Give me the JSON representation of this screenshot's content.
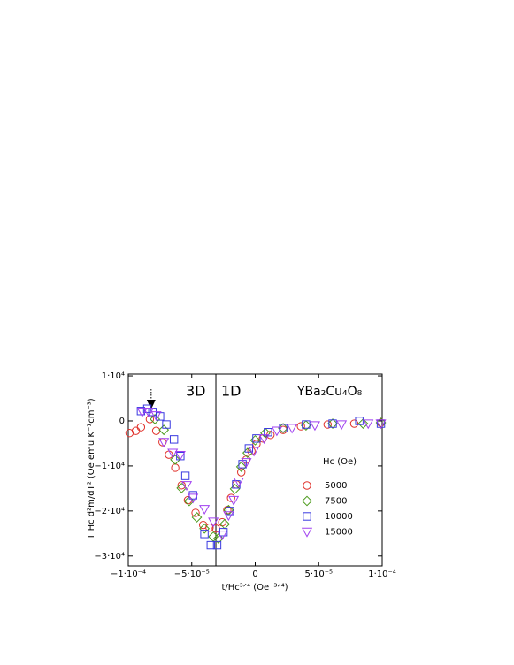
{
  "chart_data": {
    "type": "scatter",
    "x_label": "t/Hc³ᐟ⁴ (Oe⁻³ᐟ⁴)",
    "y_label": "T Hc d²m/dT² (Oe emu K⁻¹cm⁻³)",
    "annotations": {
      "left": "3D",
      "right": "1D",
      "compound": "YBa₂Cu₄O₈"
    },
    "divider_x": -3.1e-05,
    "arrow_x": -8.2e-05,
    "legend_title": "Hc (Oe)",
    "xlim": [
      -0.0001,
      0.0001
    ],
    "ylim": [
      -32200,
      10400
    ],
    "xticks": [
      {
        "value": -0.0001,
        "label": "−1·10⁻⁴"
      },
      {
        "value": -5e-05,
        "label": "−5·10⁻⁵"
      },
      0,
      {
        "value": 5e-05,
        "label": "5·10⁻⁵"
      },
      {
        "value": 0.0001,
        "label": "1·10⁻⁴"
      }
    ],
    "yticks": [
      {
        "value": 10000,
        "label": "1·10⁴"
      },
      0,
      {
        "value": -10000,
        "label": "−1·10⁴"
      },
      {
        "value": -20000,
        "label": "−2·10⁴"
      },
      {
        "value": -30000,
        "label": "−3·10⁴"
      }
    ],
    "series": [
      {
        "name": "5000",
        "color": "#e0302a",
        "marker": "circle",
        "x": [
          -9.9e-05,
          -9.4e-05,
          -9e-05,
          -8.3e-05,
          -7.8e-05,
          -7.3e-05,
          -6.8e-05,
          -6.3e-05,
          -5.8e-05,
          -5.3e-05,
          -4.7e-05,
          -4.1e-05,
          -3.6e-05,
          -3.1e-05,
          -2.6e-05,
          -2.2e-05,
          -1.9e-05,
          -1.5e-05,
          -1.1e-05,
          -7e-06,
          -3e-06,
          1e-06,
          6e-06,
          1.2e-05,
          2.2e-05,
          3.6e-05,
          5.7e-05,
          7.8e-05,
          9.9e-05
        ],
        "values": [
          -2700,
          -2200,
          -1400,
          400,
          -2200,
          -4700,
          -7500,
          -10400,
          -14300,
          -17600,
          -20400,
          -23100,
          -23700,
          -23900,
          -22500,
          -19800,
          -17100,
          -14100,
          -11400,
          -8600,
          -6700,
          -5100,
          -3900,
          -3100,
          -2000,
          -1200,
          -800,
          -600,
          -400
        ]
      },
      {
        "name": "7500",
        "color": "#4a9a1a",
        "marker": "diamond",
        "x": [
          -7.9e-05,
          -7.2e-05,
          -6.3e-05,
          -5.8e-05,
          -5.2e-05,
          -4.6e-05,
          -4e-05,
          -3.3e-05,
          -2.9e-05,
          -2.4e-05,
          -2.1e-05,
          -1.6e-05,
          -1.1e-05,
          -6e-06,
          0,
          8e-06,
          2.2e-05,
          4e-05,
          6.1e-05,
          8.5e-05,
          9.9e-05
        ],
        "values": [
          400,
          -2000,
          -8600,
          -14900,
          -17800,
          -21400,
          -23900,
          -25700,
          -26100,
          -22900,
          -19800,
          -15100,
          -10200,
          -7100,
          -4300,
          -2700,
          -1600,
          -1000,
          -600,
          -600,
          -400
        ]
      },
      {
        "name": "10000",
        "color": "#3a3ae0",
        "marker": "square",
        "x": [
          -9e-05,
          -8.5e-05,
          -8.1e-05,
          -7.5e-05,
          -7e-05,
          -6.4e-05,
          -5.9e-05,
          -5.5e-05,
          -4.9e-05,
          -4e-05,
          -3.5e-05,
          -3e-05,
          -2.5e-05,
          -2e-05,
          -1.5e-05,
          -1e-05,
          -5e-06,
          1e-06,
          1e-05,
          2.2e-05,
          4e-05,
          6.1e-05,
          8.2e-05,
          9.9e-05
        ],
        "values": [
          2200,
          2700,
          2000,
          1000,
          -800,
          -4100,
          -7800,
          -12200,
          -16500,
          -25100,
          -27600,
          -27600,
          -24700,
          -20000,
          -14100,
          -9600,
          -6100,
          -3900,
          -2500,
          -1600,
          -800,
          -600,
          0,
          -600
        ]
      },
      {
        "name": "15000",
        "color": "#a040f0",
        "marker": "triangle-down",
        "x": [
          -8.9e-05,
          -8.4e-05,
          -7.8e-05,
          -7.2e-05,
          -6.5e-05,
          -5.9e-05,
          -5.4e-05,
          -4.9e-05,
          -4e-05,
          -3.3e-05,
          -2.6e-05,
          -2.1e-05,
          -1.7e-05,
          -1.3e-05,
          -7e-06,
          -1e-06,
          7e-06,
          1.7e-05,
          2.9e-05,
          4.7e-05,
          6.8e-05,
          8.9e-05,
          9.9e-05
        ],
        "values": [
          2000,
          2000,
          1200,
          -4700,
          -7100,
          -7600,
          -14300,
          -17100,
          -19600,
          -22400,
          -25300,
          -21000,
          -17600,
          -13500,
          -9200,
          -6700,
          -3900,
          -2200,
          -1600,
          -1000,
          -800,
          -600,
          -600
        ]
      }
    ]
  }
}
